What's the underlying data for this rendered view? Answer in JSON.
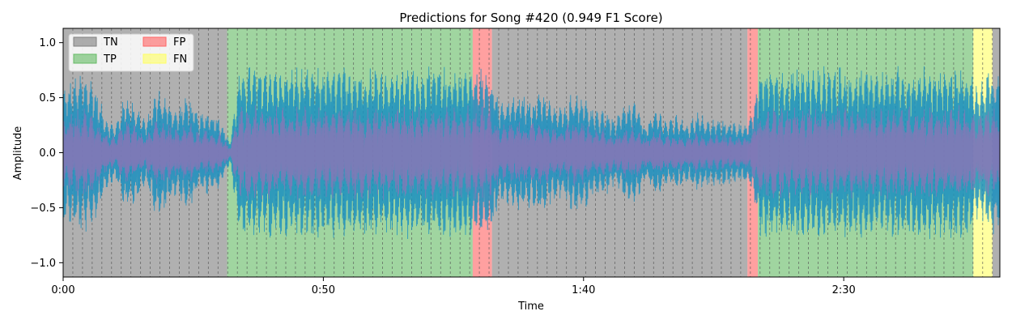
{
  "chart_data": {
    "type": "area",
    "title": "Predictions for Song #420 (0.949 F1 Score)",
    "xlabel": "Time",
    "ylabel": "Amplitude",
    "xlim": [
      0,
      180
    ],
    "ylim": [
      -1.13,
      1.13
    ],
    "x_ticks": [
      {
        "value": 0,
        "label": "0:00"
      },
      {
        "value": 50,
        "label": "0:50"
      },
      {
        "value": 100,
        "label": "1:40"
      },
      {
        "value": 150,
        "label": "2:30"
      }
    ],
    "y_ticks": [
      {
        "value": -1.0,
        "label": "−1.0"
      },
      {
        "value": -0.5,
        "label": "−0.5"
      },
      {
        "value": 0.0,
        "label": "0.0"
      },
      {
        "value": 0.5,
        "label": "0.5"
      },
      {
        "value": 1.0,
        "label": "1.0"
      }
    ],
    "legend": {
      "placement": "top-left",
      "columns": 2,
      "entries": [
        {
          "label": "TN",
          "color": "#808080"
        },
        {
          "label": "TP",
          "color": "#66bb66"
        },
        {
          "label": "FP",
          "color": "#ff6666"
        },
        {
          "label": "FN",
          "color": "#ffff66"
        }
      ]
    },
    "segments": [
      {
        "start": 0.0,
        "end": 31.5,
        "class": "TN"
      },
      {
        "start": 31.5,
        "end": 78.7,
        "class": "TP"
      },
      {
        "start": 78.7,
        "end": 82.4,
        "class": "FP"
      },
      {
        "start": 82.4,
        "end": 131.5,
        "class": "TN"
      },
      {
        "start": 131.5,
        "end": 133.5,
        "class": "FP"
      },
      {
        "start": 133.5,
        "end": 174.9,
        "class": "TP"
      },
      {
        "start": 174.9,
        "end": 178.6,
        "class": "FN"
      },
      {
        "start": 178.6,
        "end": 180.0,
        "class": "TN"
      }
    ],
    "frame_boundary_interval": 1.86,
    "envelope": {
      "x": [
        0,
        2,
        4,
        6,
        8,
        10,
        12,
        14,
        16,
        18,
        20,
        22,
        24,
        26,
        28,
        30,
        32,
        34,
        36,
        38,
        40,
        42,
        44,
        46,
        48,
        50,
        52,
        54,
        56,
        58,
        60,
        62,
        64,
        66,
        68,
        70,
        72,
        74,
        76,
        78,
        80,
        82,
        84,
        86,
        88,
        90,
        92,
        94,
        96,
        98,
        100,
        102,
        104,
        106,
        108,
        110,
        112,
        114,
        116,
        118,
        120,
        122,
        124,
        126,
        128,
        130,
        132,
        134,
        136,
        138,
        140,
        142,
        144,
        146,
        148,
        150,
        152,
        154,
        156,
        158,
        160,
        162,
        164,
        166,
        168,
        170,
        172,
        174,
        176,
        178,
        180
      ],
      "amplitude": [
        0.6,
        0.7,
        0.75,
        0.65,
        0.35,
        0.25,
        0.55,
        0.45,
        0.3,
        0.6,
        0.5,
        0.4,
        0.55,
        0.35,
        0.4,
        0.35,
        0.1,
        0.78,
        0.8,
        0.78,
        0.8,
        0.77,
        0.8,
        0.78,
        0.79,
        0.8,
        0.78,
        0.79,
        0.8,
        0.78,
        0.8,
        0.78,
        0.77,
        0.8,
        0.78,
        0.79,
        0.8,
        0.78,
        0.79,
        0.8,
        0.78,
        0.8,
        0.45,
        0.52,
        0.55,
        0.5,
        0.6,
        0.45,
        0.42,
        0.58,
        0.55,
        0.38,
        0.42,
        0.3,
        0.45,
        0.48,
        0.25,
        0.42,
        0.3,
        0.35,
        0.28,
        0.38,
        0.3,
        0.32,
        0.3,
        0.28,
        0.3,
        0.78,
        0.8,
        0.77,
        0.79,
        0.8,
        0.78,
        0.79,
        0.8,
        0.78,
        0.77,
        0.8,
        0.79,
        0.78,
        0.8,
        0.77,
        0.79,
        0.8,
        0.78,
        0.79,
        0.8,
        0.78,
        0.6,
        0.8,
        0.7
      ]
    }
  }
}
